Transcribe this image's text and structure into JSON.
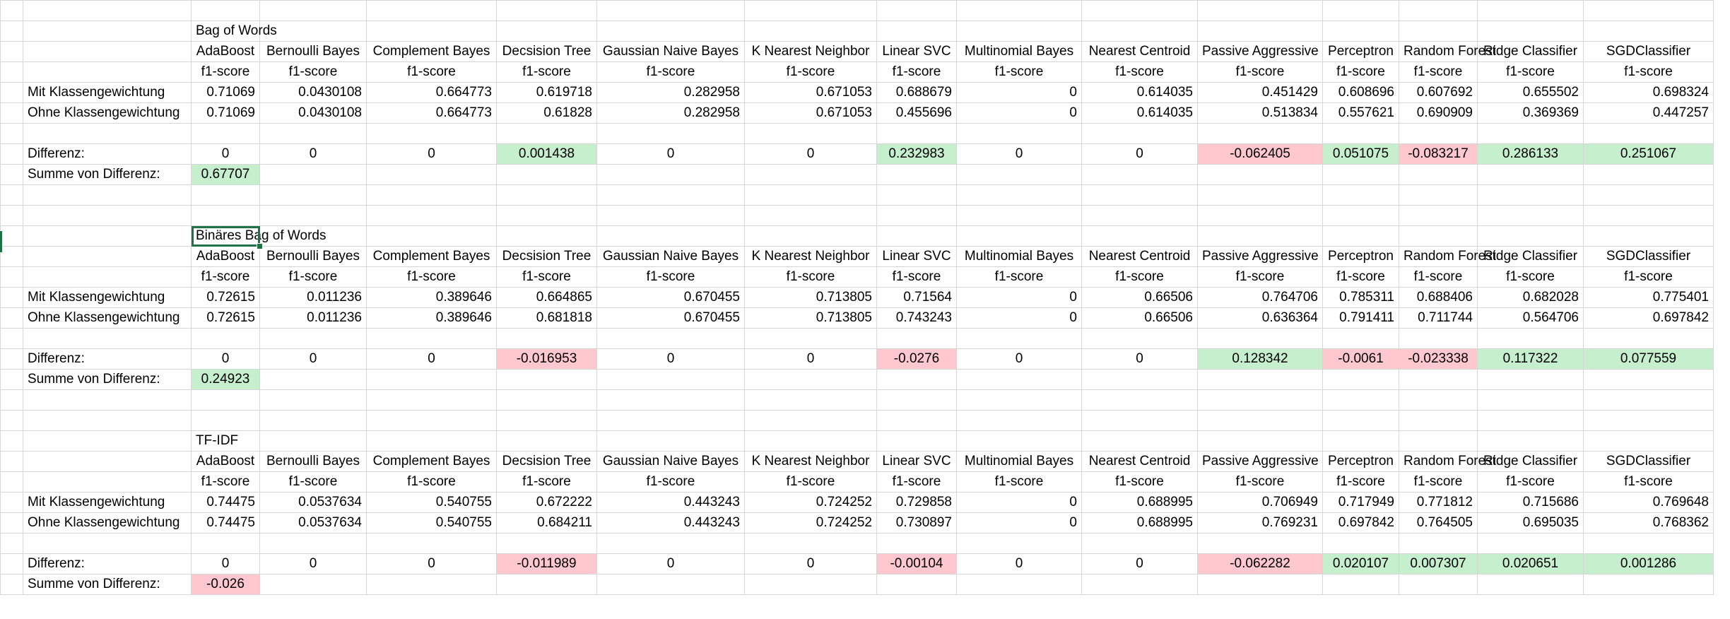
{
  "models": [
    "AdaBoost",
    "Bernoulli Bayes",
    "Complement Bayes",
    "Decsision Tree",
    "Gaussian Naive Bayes",
    "K Nearest Neighbor",
    "Linear SVC",
    "Multinomial Bayes",
    "Nearest Centroid",
    "Passive Aggressive",
    "Perceptron",
    "Random Forest",
    "Ridge Classifier",
    "SGDClassifier"
  ],
  "metric_label": "f1-score",
  "row_labels": {
    "with_weights": "Mit Klassengewichtung",
    "without_weights": "Ohne Klassengewichtung",
    "difference": "Differenz:",
    "sum": "Summe von Differenz:"
  },
  "blocks": [
    {
      "title": "Bag of Words",
      "with": [
        "0.71069",
        "0.0430108",
        "0.664773",
        "0.619718",
        "0.282958",
        "0.671053",
        "0.688679",
        "0",
        "0.614035",
        "0.451429",
        "0.608696",
        "0.607692",
        "0.655502",
        "0.698324"
      ],
      "without": [
        "0.71069",
        "0.0430108",
        "0.664773",
        "0.61828",
        "0.282958",
        "0.671053",
        "0.455696",
        "0",
        "0.614035",
        "0.513834",
        "0.557621",
        "0.690909",
        "0.369369",
        "0.447257"
      ],
      "diff": [
        "0",
        "0",
        "0",
        "0.001438",
        "0",
        "0",
        "0.232983",
        "0",
        "0",
        "-0.062405",
        "0.051075",
        "-0.083217",
        "0.286133",
        "0.251067"
      ],
      "sum": "0.67707"
    },
    {
      "title": "Binäres Bag of Words",
      "with": [
        "0.72615",
        "0.011236",
        "0.389646",
        "0.664865",
        "0.670455",
        "0.713805",
        "0.71564",
        "0",
        "0.66506",
        "0.764706",
        "0.785311",
        "0.688406",
        "0.682028",
        "0.775401"
      ],
      "without": [
        "0.72615",
        "0.011236",
        "0.389646",
        "0.681818",
        "0.670455",
        "0.713805",
        "0.743243",
        "0",
        "0.66506",
        "0.636364",
        "0.791411",
        "0.711744",
        "0.564706",
        "0.697842"
      ],
      "diff": [
        "0",
        "0",
        "0",
        "-0.016953",
        "0",
        "0",
        "-0.0276",
        "0",
        "0",
        "0.128342",
        "-0.0061",
        "-0.023338",
        "0.117322",
        "0.077559"
      ],
      "sum": "0.24923"
    },
    {
      "title": "TF-IDF",
      "with": [
        "0.74475",
        "0.0537634",
        "0.540755",
        "0.672222",
        "0.443243",
        "0.724252",
        "0.729858",
        "0",
        "0.688995",
        "0.706949",
        "0.717949",
        "0.771812",
        "0.715686",
        "0.769648"
      ],
      "without": [
        "0.74475",
        "0.0537634",
        "0.540755",
        "0.684211",
        "0.443243",
        "0.724252",
        "0.730897",
        "0",
        "0.688995",
        "0.769231",
        "0.697842",
        "0.764505",
        "0.695035",
        "0.768362"
      ],
      "diff": [
        "0",
        "0",
        "0",
        "-0.011989",
        "0",
        "0",
        "-0.00104",
        "0",
        "0",
        "-0.062282",
        "0.020107",
        "0.007307",
        "0.020651",
        "0.001286"
      ],
      "sum": "-0.026"
    }
  ],
  "colors": {
    "positive_fill": "#c6efce",
    "positive_text": "#006100",
    "negative_fill": "#ffc7ce",
    "negative_text": "#9c0006",
    "gridline": "#d6d6d6",
    "selection": "#1f7246"
  }
}
